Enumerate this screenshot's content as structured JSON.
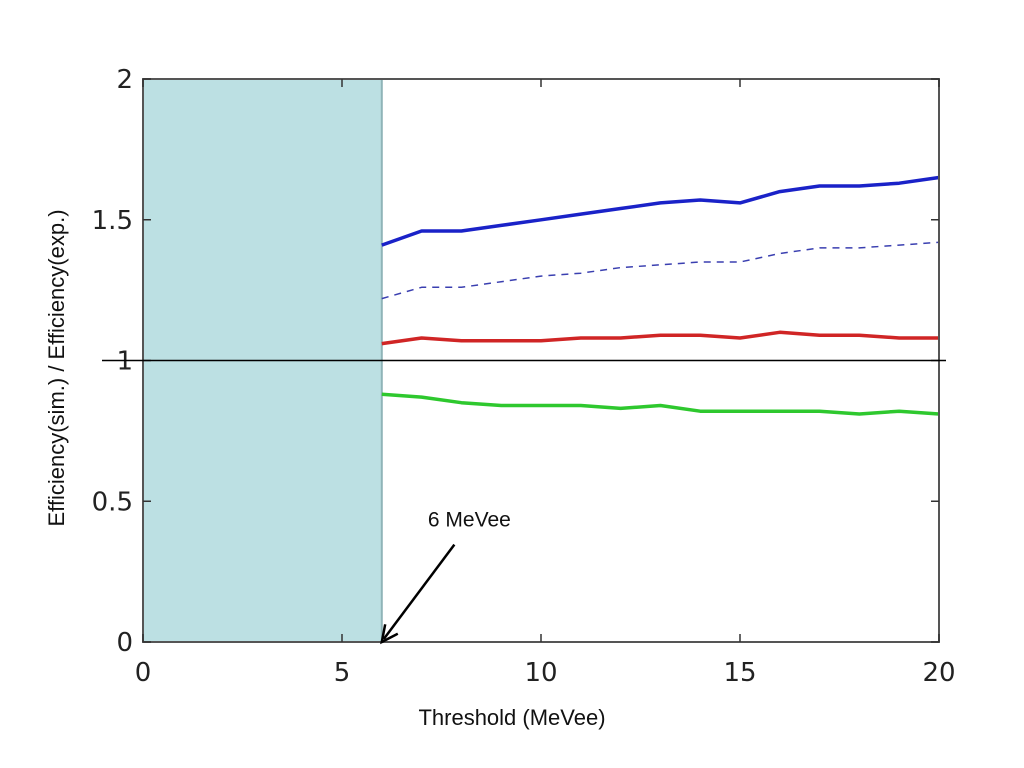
{
  "chart_data": {
    "type": "line",
    "xlabel": "Threshold (MeVee)",
    "ylabel": "Efficiency(sim.) / Efficiency(exp.)",
    "xlim": [
      0,
      20
    ],
    "ylim": [
      0,
      2
    ],
    "x_ticks": [
      0,
      5,
      10,
      15,
      20
    ],
    "y_ticks": [
      0,
      0.5,
      1,
      1.5,
      2
    ],
    "x_tick_labels": [
      "0",
      "5",
      "10",
      "15",
      "20"
    ],
    "y_tick_labels": [
      "0",
      "0.5",
      "1",
      "1.5",
      "2"
    ],
    "grid": false,
    "shaded_region": {
      "x_from": 0,
      "x_to": 6,
      "color": "#bce0e3",
      "edge_color": "#8fb4b8"
    },
    "reference_line": {
      "y": 1,
      "color": "#000000"
    },
    "annotation": {
      "text": "6 MeVee",
      "points_to": [
        6,
        0
      ],
      "text_at": [
        8.2,
        0.41
      ]
    },
    "series": [
      {
        "color": "#1a22c8",
        "style": "solid",
        "x": [
          6,
          7,
          8,
          9,
          10,
          11,
          12,
          13,
          14,
          15,
          16,
          17,
          18,
          19,
          20
        ],
        "y": [
          1.41,
          1.46,
          1.46,
          1.48,
          1.5,
          1.52,
          1.54,
          1.56,
          1.57,
          1.56,
          1.6,
          1.62,
          1.62,
          1.63,
          1.65
        ]
      },
      {
        "color": "#3a3fb0",
        "style": "dashed",
        "x": [
          6,
          7,
          8,
          9,
          10,
          11,
          12,
          13,
          14,
          15,
          16,
          17,
          18,
          19,
          20
        ],
        "y": [
          1.22,
          1.26,
          1.26,
          1.28,
          1.3,
          1.31,
          1.33,
          1.34,
          1.35,
          1.35,
          1.38,
          1.4,
          1.4,
          1.41,
          1.42
        ]
      },
      {
        "color": "#d02525",
        "style": "solid",
        "x": [
          6,
          7,
          8,
          9,
          10,
          11,
          12,
          13,
          14,
          15,
          16,
          17,
          18,
          19,
          20
        ],
        "y": [
          1.06,
          1.08,
          1.07,
          1.07,
          1.07,
          1.08,
          1.08,
          1.09,
          1.09,
          1.08,
          1.1,
          1.09,
          1.09,
          1.08,
          1.08
        ]
      },
      {
        "color": "#2ec82e",
        "style": "solid",
        "x": [
          6,
          7,
          8,
          9,
          10,
          11,
          12,
          13,
          14,
          15,
          16,
          17,
          18,
          19,
          20
        ],
        "y": [
          0.88,
          0.87,
          0.85,
          0.84,
          0.84,
          0.84,
          0.83,
          0.84,
          0.82,
          0.82,
          0.82,
          0.82,
          0.81,
          0.82,
          0.81
        ]
      }
    ]
  }
}
